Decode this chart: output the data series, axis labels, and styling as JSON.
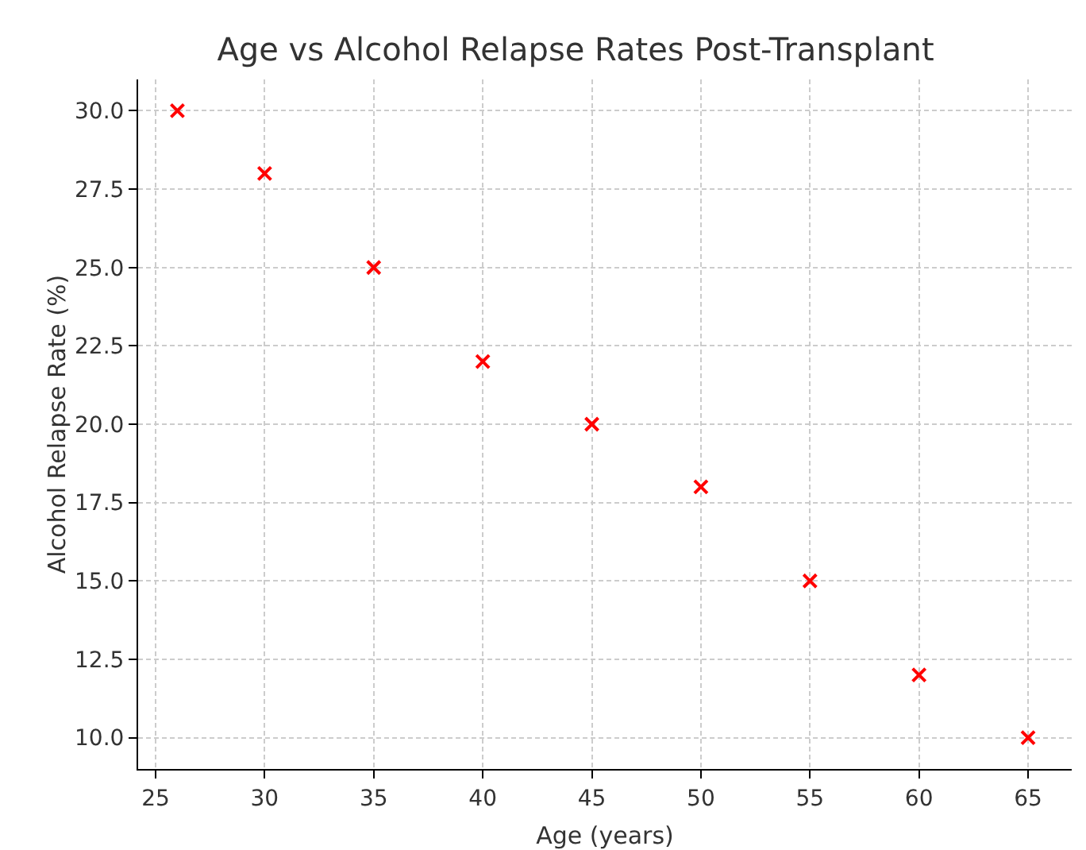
{
  "chart_data": {
    "type": "scatter",
    "title": "Age vs Alcohol Relapse Rates Post-Transplant",
    "xlabel": "Age (years)",
    "ylabel": "Alcohol Relapse Rate (%)",
    "x": [
      26,
      30,
      35,
      40,
      45,
      50,
      55,
      60,
      65
    ],
    "series": [
      {
        "color": "#ff0000",
        "values": [
          30,
          28,
          25,
          22,
          20,
          18,
          15,
          12,
          10
        ]
      }
    ],
    "xlim": [
      24.2,
      67.0
    ],
    "xticks": [
      25,
      30,
      35,
      40,
      45,
      50,
      55,
      60,
      65
    ],
    "ylim": [
      9.0,
      31.0
    ],
    "yticks": [
      {
        "value": 10,
        "label": "10.0"
      },
      {
        "value": 12.5,
        "label": "12.5"
      },
      {
        "value": 15,
        "label": "15.0"
      },
      {
        "value": 17.5,
        "label": "17.5"
      },
      {
        "value": 20,
        "label": "20.0"
      },
      {
        "value": 22.5,
        "label": "22.5"
      },
      {
        "value": 25,
        "label": "25.0"
      },
      {
        "value": 27.5,
        "label": "27.5"
      },
      {
        "value": 30,
        "label": "30.0"
      }
    ],
    "grid": true,
    "marker": "cross"
  }
}
